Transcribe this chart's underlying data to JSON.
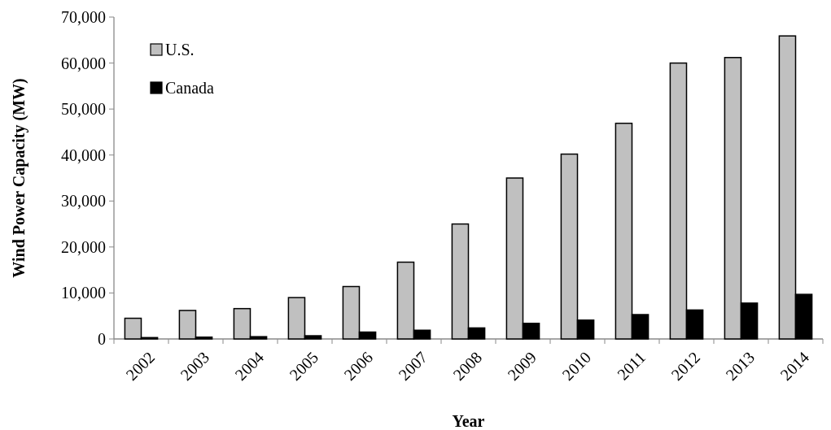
{
  "chart_data": {
    "type": "bar",
    "xlabel": "Year",
    "ylabel": "Wind Power Capacity (MW)",
    "categories": [
      "2002",
      "2003",
      "2004",
      "2005",
      "2006",
      "2007",
      "2008",
      "2009",
      "2010",
      "2011",
      "2012",
      "2013",
      "2014"
    ],
    "series": [
      {
        "name": "U.S.",
        "color": "#c0c0c0",
        "values": [
          4500,
          6200,
          6600,
          9000,
          11400,
          16700,
          25000,
          35000,
          40200,
          46900,
          60000,
          61200,
          65900
        ]
      },
      {
        "name": "Canada",
        "color": "#000000",
        "values": [
          300,
          400,
          500,
          700,
          1500,
          1900,
          2400,
          3400,
          4100,
          5300,
          6300,
          7800,
          9700
        ]
      }
    ],
    "ylim": [
      0,
      70000
    ],
    "yticks": [
      {
        "value": 0,
        "label": "0"
      },
      {
        "value": 10000,
        "label": "10,000"
      },
      {
        "value": 20000,
        "label": "20,000"
      },
      {
        "value": 30000,
        "label": "30,000"
      },
      {
        "value": 40000,
        "label": "40,000"
      },
      {
        "value": 50000,
        "label": "50,000"
      },
      {
        "value": 60000,
        "label": "60,000"
      },
      {
        "value": 70000,
        "label": "70,000"
      }
    ],
    "grid": false,
    "legend": "top left"
  }
}
